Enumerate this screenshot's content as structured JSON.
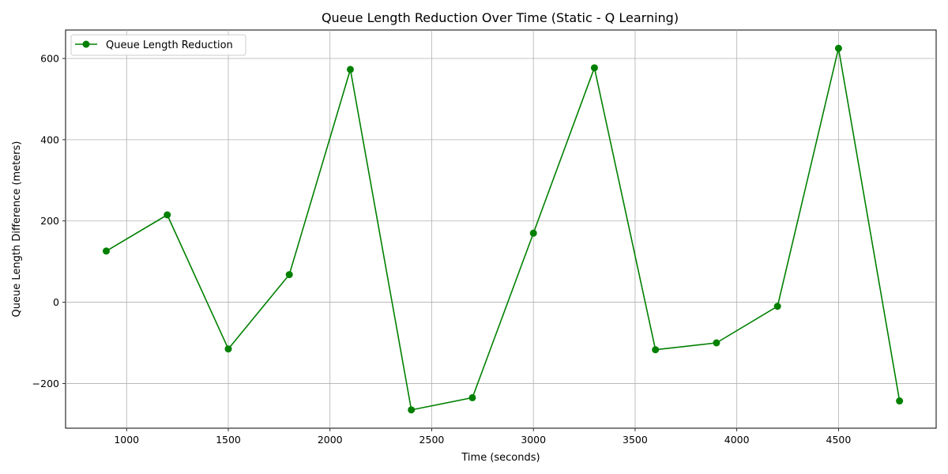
{
  "chart_data": {
    "type": "line",
    "title": "Queue Length Reduction Over Time (Static - Q Learning)",
    "xlabel": "Time (seconds)",
    "ylabel": "Queue Length Difference (meters)",
    "xlim": [
      700,
      4980
    ],
    "ylim": [
      -310,
      670
    ],
    "x_ticks": [
      1000,
      1500,
      2000,
      2500,
      3000,
      3500,
      4000,
      4500
    ],
    "y_ticks": [
      -200,
      0,
      200,
      400,
      600
    ],
    "grid": true,
    "legend_position": "top-left",
    "series": [
      {
        "name": "Queue Length Reduction",
        "color": "#008000",
        "marker": "circle",
        "x": [
          900,
          1200,
          1500,
          1800,
          2100,
          2400,
          2700,
          3000,
          3300,
          3600,
          3900,
          4200,
          4500,
          4800
        ],
        "y": [
          126,
          215,
          -115,
          68,
          573,
          -265,
          -235,
          170,
          577,
          -117,
          -100,
          -10,
          625,
          -243
        ]
      }
    ]
  }
}
